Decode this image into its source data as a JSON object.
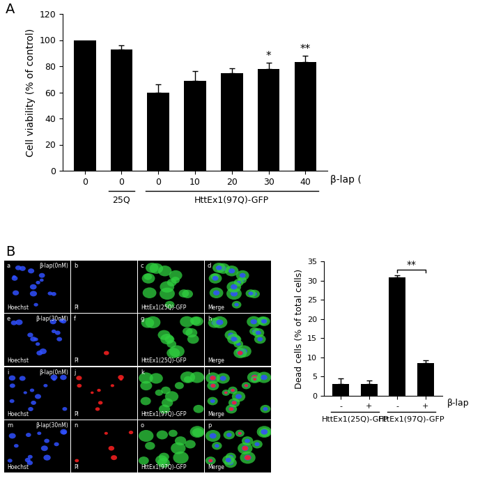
{
  "panels": [
    "A",
    "B"
  ],
  "chart_data": [
    {
      "type": "bar",
      "categories": [
        "0",
        "0",
        "0",
        "10",
        "20",
        "30",
        "40"
      ],
      "groups": [
        null,
        "25Q",
        "HttEx1(97Q)-GFP",
        "HttEx1(97Q)-GFP",
        "HttEx1(97Q)-GFP",
        "HttEx1(97Q)-GFP",
        "HttEx1(97Q)-GFP"
      ],
      "values": [
        100,
        93,
        60,
        69,
        74.5,
        78,
        83
      ],
      "errors": [
        null,
        3,
        6,
        7.5,
        4,
        4.5,
        5
      ],
      "significance": [
        null,
        null,
        null,
        null,
        null,
        "*",
        "**"
      ],
      "xlabel": "β-lap (",
      "ylabel": "Cell viability (% of control)",
      "color": "#000000",
      "ylim": [
        0,
        120
      ],
      "yticks": [
        0,
        20,
        40,
        60,
        80,
        100,
        120
      ]
    },
    {
      "type": "bar",
      "categories": [
        "-",
        "+",
        "-",
        "+"
      ],
      "groups": [
        "HttEx1(25Q)-GFP",
        "HttEx1(25Q)-GFP",
        "HttEx1(97Q)-GFP",
        "HttEx1(97Q)-GFP"
      ],
      "values": [
        3,
        3.1,
        30.8,
        8.5
      ],
      "errors": [
        1.5,
        0.8,
        0.6,
        0.8
      ],
      "comparisons": [
        {
          "pair": [
            2,
            3
          ],
          "label": "**"
        }
      ],
      "xlabel": "β-lap",
      "ylabel": "Dead cells (% of total cells)",
      "color": "#000000",
      "ylim": [
        0,
        35
      ],
      "yticks": [
        0,
        5,
        10,
        15,
        20,
        25,
        30,
        35
      ]
    }
  ],
  "image_grid": {
    "rows": [
      {
        "condition": "β-lap(0nM)",
        "letters": [
          "a",
          "b",
          "c",
          "d"
        ],
        "channels": [
          "Hoechst",
          "PI",
          "HttEx1(25Q)-GFP",
          "Merge"
        ]
      },
      {
        "condition": "β-lap(30nM)",
        "letters": [
          "e",
          "f",
          "g",
          "h"
        ],
        "channels": [
          "Hoechst",
          "PI",
          "HttEx1(25Q)-GFP",
          "Merge"
        ]
      },
      {
        "condition": "β-lap(0nM)",
        "letters": [
          "i",
          "j",
          "k",
          "l"
        ],
        "channels": [
          "Hoechst",
          "PI",
          "HttEx1(97Q)-GFP",
          "Merge"
        ]
      },
      {
        "condition": "β-lap(30nM)",
        "letters": [
          "m",
          "n",
          "o",
          "p"
        ],
        "channels": [
          "Hoechst",
          "PI",
          "HttEx1(97Q)-GFP",
          "Merge"
        ]
      }
    ]
  }
}
